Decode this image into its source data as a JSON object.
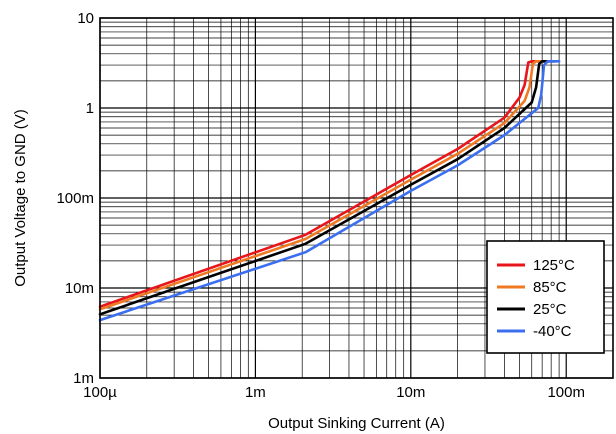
{
  "chart_data": {
    "type": "line",
    "xlabel": "Output Sinking Current (A)",
    "ylabel": "Output Voltage to GND (V)",
    "x_scale": "log",
    "y_scale": "log",
    "xlim": [
      0.0001,
      0.2
    ],
    "ylim": [
      0.001,
      10
    ],
    "grid": true,
    "legend_position": "bottom-right",
    "x_ticks": [
      {
        "value": 0.0001,
        "label": "100µ"
      },
      {
        "value": 0.001,
        "label": "1m"
      },
      {
        "value": 0.01,
        "label": "10m"
      },
      {
        "value": 0.1,
        "label": "100m"
      }
    ],
    "y_ticks": [
      {
        "value": 0.001,
        "label": "1m"
      },
      {
        "value": 0.01,
        "label": "10m"
      },
      {
        "value": 0.1,
        "label": "100m"
      },
      {
        "value": 1,
        "label": "1"
      },
      {
        "value": 10,
        "label": "10"
      }
    ],
    "series": [
      {
        "name": "125°C",
        "color": "#e8161b",
        "x": [
          0.0001,
          0.0021,
          0.01,
          0.02,
          0.04,
          0.05,
          0.054,
          0.057,
          0.06,
          0.075
        ],
        "y": [
          0.0062,
          0.039,
          0.18,
          0.35,
          0.78,
          1.3,
          1.8,
          3.2,
          3.3,
          3.3
        ]
      },
      {
        "name": "85°C",
        "color": "#ef7a23",
        "x": [
          0.0001,
          0.0021,
          0.01,
          0.02,
          0.04,
          0.054,
          0.058,
          0.061,
          0.064,
          0.078
        ],
        "y": [
          0.0058,
          0.035,
          0.16,
          0.31,
          0.68,
          1.2,
          1.7,
          3.1,
          3.3,
          3.3
        ]
      },
      {
        "name": "25°C",
        "color": "#000000",
        "x": [
          0.0001,
          0.0021,
          0.01,
          0.02,
          0.04,
          0.06,
          0.064,
          0.067,
          0.07,
          0.085
        ],
        "y": [
          0.0051,
          0.031,
          0.14,
          0.27,
          0.6,
          1.15,
          1.7,
          3.1,
          3.3,
          3.3
        ]
      },
      {
        "name": "-40°C",
        "color": "#3b6ff0",
        "x": [
          0.0001,
          0.0021,
          0.01,
          0.02,
          0.04,
          0.066,
          0.069,
          0.072,
          0.076,
          0.09
        ],
        "y": [
          0.0044,
          0.025,
          0.12,
          0.23,
          0.5,
          1.0,
          1.4,
          3.0,
          3.3,
          3.3
        ]
      }
    ]
  }
}
